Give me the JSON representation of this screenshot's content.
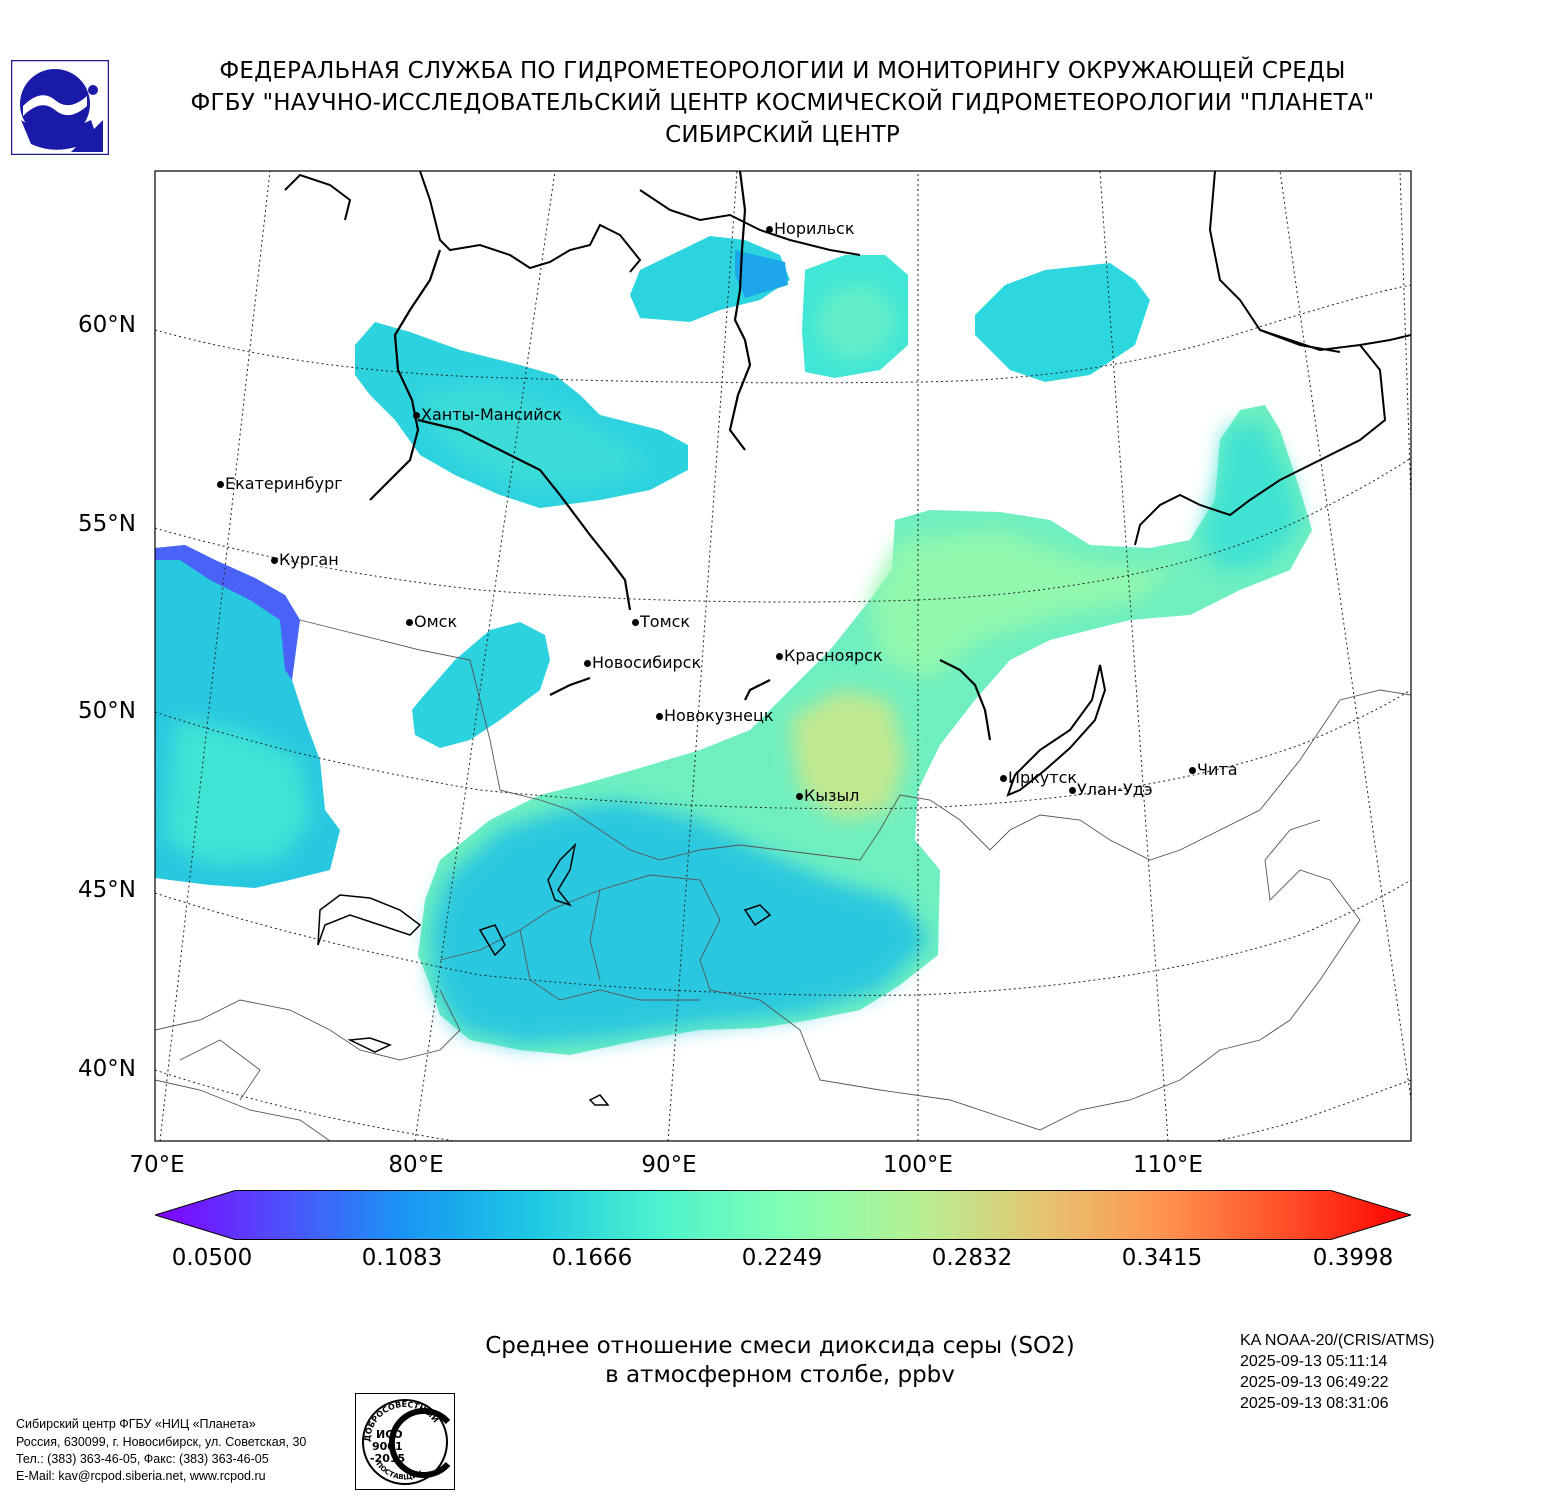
{
  "header": {
    "line1": "ФЕДЕРАЛЬНАЯ СЛУЖБА ПО ГИДРОМЕТЕОРОЛОГИИ И МОНИТОРИНГУ ОКРУЖАЮЩЕЙ СРЕДЫ",
    "line2": "ФГБУ \"НАУЧНО-ИССЛЕДОВАТЕЛЬСКИЙ ЦЕНТР КОСМИЧЕСКОЙ ГИДРОМЕТЕОРОЛОГИИ \"ПЛАНЕТА\"",
    "line3": "СИБИРСКИЙ ЦЕНТР"
  },
  "map": {
    "lat_labels": [
      "60°N",
      "55°N",
      "50°N",
      "45°N",
      "40°N"
    ],
    "lon_labels": [
      "70°E",
      "80°E",
      "90°E",
      "100°E",
      "110°E"
    ],
    "cities": [
      "Норильск",
      "Ханты-Мансийск",
      "Екатеринбург",
      "Курган",
      "Омск",
      "Томск",
      "Новосибирск",
      "Красноярск",
      "Новокузнецк",
      "Кызыл",
      "Иркутск",
      "Улан-Удэ",
      "Чита"
    ]
  },
  "colorbar": {
    "tick_labels": [
      "0.0500",
      "0.1083",
      "0.1666",
      "0.2249",
      "0.2832",
      "0.3415",
      "0.3998"
    ],
    "min": 0.05,
    "max": 0.3998,
    "colors": [
      "#8000ff",
      "#4f4ffc",
      "#1996f3",
      "#1ec8e4",
      "#4cf2ce",
      "#80ffb4",
      "#b2f396",
      "#e2c874",
      "#ff9650",
      "#ff4f28",
      "#ff0000"
    ]
  },
  "caption": {
    "line1": "Среднее отношение смеси диоксида серы (SO2)",
    "line2": "в атмосферном столбе, ppbv"
  },
  "satellite": {
    "name": "KA NOAA-20/(CRIS/ATMS)",
    "time1": "2025-09-13 05:11:14",
    "time2": "2025-09-13 06:49:22",
    "time3": "2025-09-13 08:31:06"
  },
  "footer": {
    "line1": "Сибирский центр ФГБУ «НИЦ «Планета»",
    "line2": "Россия, 630099, г. Новосибирск, ул. Советская, 30",
    "line3": "Тел.: (383) 363-46-05, Факс: (383) 363-46-05",
    "line4": "E-Mail: kav@rcpod.siberia.net, www.rcpod.ru"
  },
  "iso_badge": {
    "top_text": "ДОБРОСОВЕСТНЫЙ",
    "line1": "ИСО",
    "line2": "9001",
    "line3": "-2015",
    "bottom_text": "ПОСТАВЩИК"
  }
}
